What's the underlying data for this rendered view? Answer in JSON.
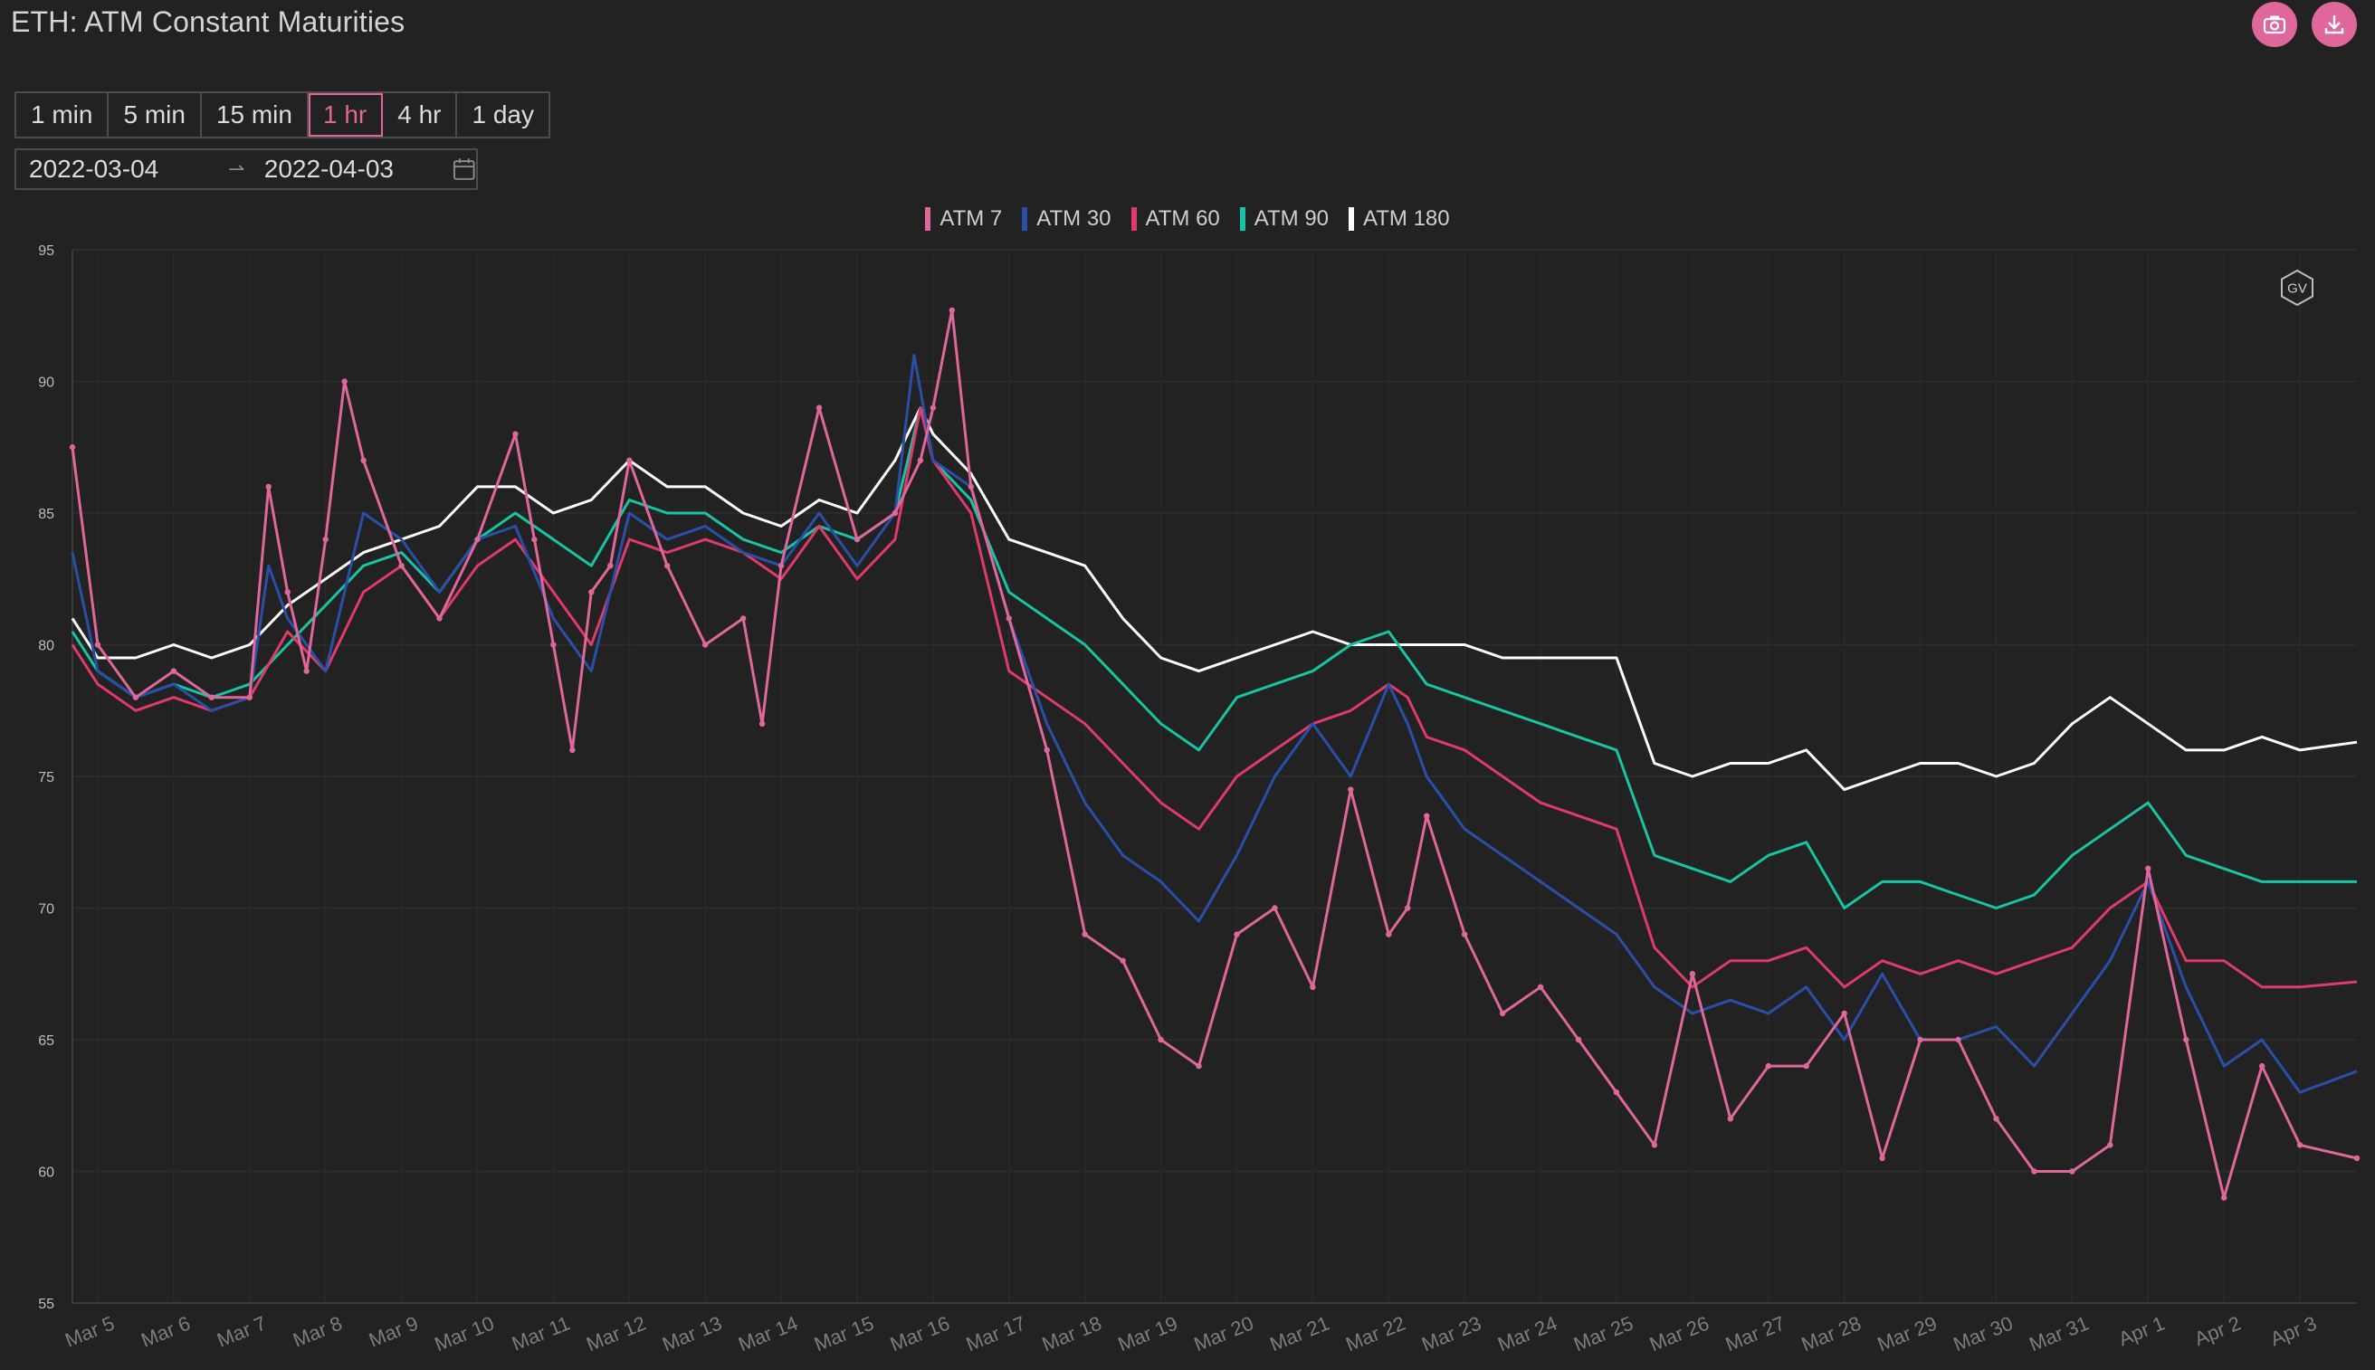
{
  "title": "ETH: ATM Constant Maturities",
  "actions": {
    "screenshot_icon": "camera-icon",
    "download_icon": "download-icon"
  },
  "intervals": [
    {
      "label": "1 min"
    },
    {
      "label": "5 min"
    },
    {
      "label": "15 min"
    },
    {
      "label": "1 hr",
      "active": true
    },
    {
      "label": "4 hr"
    },
    {
      "label": "1 day"
    }
  ],
  "date_range": {
    "start": "2022-03-04",
    "end": "2022-04-03",
    "icon": "calendar-icon"
  },
  "watermark": "GV",
  "chart_data": {
    "type": "line",
    "title": "",
    "xlabel": "",
    "ylabel": "",
    "ylim": [
      55,
      95
    ],
    "yticks": [
      55,
      60,
      65,
      70,
      75,
      80,
      85,
      90,
      95
    ],
    "xlim": [
      "2022-03-04T16:00",
      "2022-04-03T18:00"
    ],
    "xticks": [
      "Mar 5",
      "Mar 6",
      "Mar 7",
      "Mar 8",
      "Mar 9",
      "Mar 10",
      "Mar 11",
      "Mar 12",
      "Mar 13",
      "Mar 14",
      "Mar 15",
      "Mar 16",
      "Mar 17",
      "Mar 18",
      "Mar 19",
      "Mar 20",
      "Mar 21",
      "Mar 22",
      "Mar 23",
      "Mar 24",
      "Mar 25",
      "Mar 26",
      "Mar 27",
      "Mar 28",
      "Mar 29",
      "Mar 30",
      "Mar 31",
      "Apr 1",
      "Apr 2",
      "Apr 3"
    ],
    "legend_position": "top-center",
    "grid": true,
    "series": [
      {
        "name": "ATM 7",
        "color": "#e0679b",
        "marker": true,
        "x": [
          "2022-03-04T16:00",
          "2022-03-05T00:00",
          "2022-03-05T12:00",
          "2022-03-06T00:00",
          "2022-03-06T12:00",
          "2022-03-07T00:00",
          "2022-03-07T06:00",
          "2022-03-07T12:00",
          "2022-03-07T18:00",
          "2022-03-08T00:00",
          "2022-03-08T06:00",
          "2022-03-08T12:00",
          "2022-03-09T00:00",
          "2022-03-09T12:00",
          "2022-03-10T00:00",
          "2022-03-10T12:00",
          "2022-03-10T18:00",
          "2022-03-11T00:00",
          "2022-03-11T06:00",
          "2022-03-11T12:00",
          "2022-03-11T18:00",
          "2022-03-12T00:00",
          "2022-03-12T12:00",
          "2022-03-13T00:00",
          "2022-03-13T12:00",
          "2022-03-13T18:00",
          "2022-03-14T00:00",
          "2022-03-14T12:00",
          "2022-03-15T00:00",
          "2022-03-15T12:00",
          "2022-03-15T20:00",
          "2022-03-16T00:00",
          "2022-03-16T06:00",
          "2022-03-16T12:00",
          "2022-03-17T00:00",
          "2022-03-17T12:00",
          "2022-03-18T00:00",
          "2022-03-18T12:00",
          "2022-03-19T00:00",
          "2022-03-19T12:00",
          "2022-03-20T00:00",
          "2022-03-20T12:00",
          "2022-03-21T00:00",
          "2022-03-21T12:00",
          "2022-03-22T00:00",
          "2022-03-22T06:00",
          "2022-03-22T12:00",
          "2022-03-23T00:00",
          "2022-03-23T12:00",
          "2022-03-24T00:00",
          "2022-03-24T12:00",
          "2022-03-25T00:00",
          "2022-03-25T12:00",
          "2022-03-26T00:00",
          "2022-03-26T12:00",
          "2022-03-27T00:00",
          "2022-03-27T12:00",
          "2022-03-28T00:00",
          "2022-03-28T12:00",
          "2022-03-29T00:00",
          "2022-03-29T12:00",
          "2022-03-30T00:00",
          "2022-03-30T12:00",
          "2022-03-31T00:00",
          "2022-03-31T12:00",
          "2022-04-01T00:00",
          "2022-04-01T12:00",
          "2022-04-02T00:00",
          "2022-04-02T12:00",
          "2022-04-03T00:00",
          "2022-04-03T18:00"
        ],
        "values": [
          87.5,
          80.0,
          78.0,
          79.0,
          78.0,
          78.0,
          86.0,
          82.0,
          79.0,
          84.0,
          90.0,
          87.0,
          83.0,
          81.0,
          84.0,
          88.0,
          84.0,
          80.0,
          76.0,
          82.0,
          83.0,
          87.0,
          83.0,
          80.0,
          81.0,
          77.0,
          83.0,
          89.0,
          84.0,
          85.0,
          87.0,
          89.0,
          92.7,
          86.0,
          81.0,
          76.0,
          69.0,
          68.0,
          65.0,
          64.0,
          69.0,
          70.0,
          67.0,
          74.5,
          69.0,
          70.0,
          73.5,
          69.0,
          66.0,
          67.0,
          65.0,
          63.0,
          61.0,
          67.5,
          62.0,
          64.0,
          64.0,
          66.0,
          60.5,
          65.0,
          65.0,
          62.0,
          60.0,
          60.0,
          61.0,
          71.5,
          65.0,
          59.0,
          64.0,
          61.0,
          60.5
        ]
      },
      {
        "name": "ATM 30",
        "color": "#2a4fa8",
        "marker": false,
        "x": [
          "2022-03-04T16:00",
          "2022-03-05T00:00",
          "2022-03-05T12:00",
          "2022-03-06T00:00",
          "2022-03-06T12:00",
          "2022-03-07T00:00",
          "2022-03-07T06:00",
          "2022-03-07T12:00",
          "2022-03-08T00:00",
          "2022-03-08T12:00",
          "2022-03-09T00:00",
          "2022-03-09T12:00",
          "2022-03-10T00:00",
          "2022-03-10T12:00",
          "2022-03-11T00:00",
          "2022-03-11T12:00",
          "2022-03-12T00:00",
          "2022-03-12T12:00",
          "2022-03-13T00:00",
          "2022-03-13T12:00",
          "2022-03-14T00:00",
          "2022-03-14T12:00",
          "2022-03-15T00:00",
          "2022-03-15T12:00",
          "2022-03-15T18:00",
          "2022-03-16T00:00",
          "2022-03-16T12:00",
          "2022-03-17T00:00",
          "2022-03-17T12:00",
          "2022-03-18T00:00",
          "2022-03-18T12:00",
          "2022-03-19T00:00",
          "2022-03-19T12:00",
          "2022-03-20T00:00",
          "2022-03-20T12:00",
          "2022-03-21T00:00",
          "2022-03-21T12:00",
          "2022-03-22T00:00",
          "2022-03-22T06:00",
          "2022-03-22T12:00",
          "2022-03-23T00:00",
          "2022-03-23T12:00",
          "2022-03-24T00:00",
          "2022-03-24T12:00",
          "2022-03-25T00:00",
          "2022-03-25T12:00",
          "2022-03-26T00:00",
          "2022-03-26T12:00",
          "2022-03-27T00:00",
          "2022-03-27T12:00",
          "2022-03-28T00:00",
          "2022-03-28T12:00",
          "2022-03-29T00:00",
          "2022-03-29T12:00",
          "2022-03-30T00:00",
          "2022-03-30T12:00",
          "2022-03-31T00:00",
          "2022-03-31T12:00",
          "2022-04-01T00:00",
          "2022-04-01T12:00",
          "2022-04-02T00:00",
          "2022-04-02T12:00",
          "2022-04-03T00:00",
          "2022-04-03T18:00"
        ],
        "values": [
          83.5,
          79.0,
          78.0,
          78.5,
          77.5,
          78.0,
          83.0,
          81.0,
          79.0,
          85.0,
          84.0,
          82.0,
          84.0,
          84.5,
          81.0,
          79.0,
          85.0,
          84.0,
          84.5,
          83.5,
          83.0,
          85.0,
          83.0,
          85.0,
          91.0,
          87.0,
          86.0,
          81.0,
          77.0,
          74.0,
          72.0,
          71.0,
          69.5,
          72.0,
          75.0,
          77.0,
          75.0,
          78.5,
          77.0,
          75.0,
          73.0,
          72.0,
          71.0,
          70.0,
          69.0,
          67.0,
          66.0,
          66.5,
          66.0,
          67.0,
          65.0,
          67.5,
          65.0,
          65.0,
          65.5,
          64.0,
          66.0,
          68.0,
          71.0,
          67.0,
          64.0,
          65.0,
          63.0,
          63.8
        ]
      },
      {
        "name": "ATM 60",
        "color": "#e03a6b",
        "marker": false,
        "x": [
          "2022-03-04T16:00",
          "2022-03-05T00:00",
          "2022-03-05T12:00",
          "2022-03-06T00:00",
          "2022-03-06T12:00",
          "2022-03-07T00:00",
          "2022-03-07T12:00",
          "2022-03-08T00:00",
          "2022-03-08T12:00",
          "2022-03-09T00:00",
          "2022-03-09T12:00",
          "2022-03-10T00:00",
          "2022-03-10T12:00",
          "2022-03-11T00:00",
          "2022-03-11T12:00",
          "2022-03-12T00:00",
          "2022-03-12T12:00",
          "2022-03-13T00:00",
          "2022-03-13T12:00",
          "2022-03-14T00:00",
          "2022-03-14T12:00",
          "2022-03-15T00:00",
          "2022-03-15T12:00",
          "2022-03-15T20:00",
          "2022-03-16T00:00",
          "2022-03-16T12:00",
          "2022-03-17T00:00",
          "2022-03-17T12:00",
          "2022-03-18T00:00",
          "2022-03-18T12:00",
          "2022-03-19T00:00",
          "2022-03-19T12:00",
          "2022-03-20T00:00",
          "2022-03-20T12:00",
          "2022-03-21T00:00",
          "2022-03-21T12:00",
          "2022-03-22T00:00",
          "2022-03-22T06:00",
          "2022-03-22T12:00",
          "2022-03-23T00:00",
          "2022-03-23T12:00",
          "2022-03-24T00:00",
          "2022-03-24T12:00",
          "2022-03-25T00:00",
          "2022-03-25T12:00",
          "2022-03-26T00:00",
          "2022-03-26T12:00",
          "2022-03-27T00:00",
          "2022-03-27T12:00",
          "2022-03-28T00:00",
          "2022-03-28T12:00",
          "2022-03-29T00:00",
          "2022-03-29T12:00",
          "2022-03-30T00:00",
          "2022-03-30T12:00",
          "2022-03-31T00:00",
          "2022-03-31T12:00",
          "2022-04-01T00:00",
          "2022-04-01T12:00",
          "2022-04-02T00:00",
          "2022-04-02T12:00",
          "2022-04-03T00:00",
          "2022-04-03T18:00"
        ],
        "values": [
          80.0,
          78.5,
          77.5,
          78.0,
          77.5,
          78.0,
          80.5,
          79.0,
          82.0,
          83.0,
          81.0,
          83.0,
          84.0,
          82.0,
          80.0,
          84.0,
          83.5,
          84.0,
          83.5,
          82.5,
          84.5,
          82.5,
          84.0,
          89.0,
          87.0,
          85.0,
          79.0,
          78.0,
          77.0,
          75.5,
          74.0,
          73.0,
          75.0,
          76.0,
          77.0,
          77.5,
          78.5,
          78.0,
          76.5,
          76.0,
          75.0,
          74.0,
          73.5,
          73.0,
          68.5,
          67.0,
          68.0,
          68.0,
          68.5,
          67.0,
          68.0,
          67.5,
          68.0,
          67.5,
          68.0,
          68.5,
          70.0,
          71.0,
          68.0,
          68.0,
          67.0,
          67.0,
          67.2
        ]
      },
      {
        "name": "ATM 90",
        "color": "#17c4a3",
        "marker": false,
        "x": [
          "2022-03-04T16:00",
          "2022-03-05T00:00",
          "2022-03-05T12:00",
          "2022-03-06T00:00",
          "2022-03-06T12:00",
          "2022-03-07T00:00",
          "2022-03-07T12:00",
          "2022-03-08T00:00",
          "2022-03-08T12:00",
          "2022-03-09T00:00",
          "2022-03-09T12:00",
          "2022-03-10T00:00",
          "2022-03-10T12:00",
          "2022-03-11T00:00",
          "2022-03-11T12:00",
          "2022-03-12T00:00",
          "2022-03-12T12:00",
          "2022-03-13T00:00",
          "2022-03-13T12:00",
          "2022-03-14T00:00",
          "2022-03-14T12:00",
          "2022-03-15T00:00",
          "2022-03-15T12:00",
          "2022-03-15T20:00",
          "2022-03-16T00:00",
          "2022-03-16T12:00",
          "2022-03-17T00:00",
          "2022-03-17T12:00",
          "2022-03-18T00:00",
          "2022-03-18T12:00",
          "2022-03-19T00:00",
          "2022-03-19T12:00",
          "2022-03-20T00:00",
          "2022-03-20T12:00",
          "2022-03-21T00:00",
          "2022-03-21T12:00",
          "2022-03-22T00:00",
          "2022-03-22T12:00",
          "2022-03-23T00:00",
          "2022-03-23T12:00",
          "2022-03-24T00:00",
          "2022-03-24T12:00",
          "2022-03-25T00:00",
          "2022-03-25T12:00",
          "2022-03-26T00:00",
          "2022-03-26T12:00",
          "2022-03-27T00:00",
          "2022-03-27T12:00",
          "2022-03-28T00:00",
          "2022-03-28T12:00",
          "2022-03-29T00:00",
          "2022-03-29T12:00",
          "2022-03-30T00:00",
          "2022-03-30T12:00",
          "2022-03-31T00:00",
          "2022-03-31T12:00",
          "2022-04-01T00:00",
          "2022-04-01T12:00",
          "2022-04-02T00:00",
          "2022-04-02T12:00",
          "2022-04-03T00:00",
          "2022-04-03T18:00"
        ],
        "values": [
          80.5,
          79.0,
          78.0,
          78.5,
          78.0,
          78.5,
          80.0,
          81.5,
          83.0,
          83.5,
          82.0,
          84.0,
          85.0,
          84.0,
          83.0,
          85.5,
          85.0,
          85.0,
          84.0,
          83.5,
          84.5,
          84.0,
          85.0,
          89.0,
          87.0,
          85.5,
          82.0,
          81.0,
          80.0,
          78.5,
          77.0,
          76.0,
          78.0,
          78.5,
          79.0,
          80.0,
          80.5,
          78.5,
          78.0,
          77.5,
          77.0,
          76.5,
          76.0,
          72.0,
          71.5,
          71.0,
          72.0,
          72.5,
          70.0,
          71.0,
          71.0,
          70.5,
          70.0,
          70.5,
          72.0,
          73.0,
          74.0,
          72.0,
          71.5,
          71.0,
          71.0,
          71.0
        ]
      },
      {
        "name": "ATM 180",
        "color": "#ffffff",
        "marker": false,
        "x": [
          "2022-03-04T16:00",
          "2022-03-05T00:00",
          "2022-03-05T12:00",
          "2022-03-06T00:00",
          "2022-03-06T12:00",
          "2022-03-07T00:00",
          "2022-03-07T12:00",
          "2022-03-08T00:00",
          "2022-03-08T12:00",
          "2022-03-09T00:00",
          "2022-03-09T12:00",
          "2022-03-10T00:00",
          "2022-03-10T12:00",
          "2022-03-11T00:00",
          "2022-03-11T12:00",
          "2022-03-12T00:00",
          "2022-03-12T12:00",
          "2022-03-13T00:00",
          "2022-03-13T12:00",
          "2022-03-14T00:00",
          "2022-03-14T12:00",
          "2022-03-15T00:00",
          "2022-03-15T12:00",
          "2022-03-15T20:00",
          "2022-03-16T00:00",
          "2022-03-16T12:00",
          "2022-03-17T00:00",
          "2022-03-17T12:00",
          "2022-03-18T00:00",
          "2022-03-18T12:00",
          "2022-03-19T00:00",
          "2022-03-19T12:00",
          "2022-03-20T00:00",
          "2022-03-20T12:00",
          "2022-03-21T00:00",
          "2022-03-21T12:00",
          "2022-03-22T00:00",
          "2022-03-22T12:00",
          "2022-03-23T00:00",
          "2022-03-23T12:00",
          "2022-03-24T00:00",
          "2022-03-24T12:00",
          "2022-03-25T00:00",
          "2022-03-25T12:00",
          "2022-03-26T00:00",
          "2022-03-26T12:00",
          "2022-03-27T00:00",
          "2022-03-27T12:00",
          "2022-03-28T00:00",
          "2022-03-28T12:00",
          "2022-03-29T00:00",
          "2022-03-29T12:00",
          "2022-03-30T00:00",
          "2022-03-30T12:00",
          "2022-03-31T00:00",
          "2022-03-31T12:00",
          "2022-04-01T00:00",
          "2022-04-01T12:00",
          "2022-04-02T00:00",
          "2022-04-02T12:00",
          "2022-04-03T00:00",
          "2022-04-03T18:00"
        ],
        "values": [
          81.0,
          79.5,
          79.5,
          80.0,
          79.5,
          80.0,
          81.5,
          82.5,
          83.5,
          84.0,
          84.5,
          86.0,
          86.0,
          85.0,
          85.5,
          87.0,
          86.0,
          86.0,
          85.0,
          84.5,
          85.5,
          85.0,
          87.0,
          89.0,
          88.0,
          86.5,
          84.0,
          83.5,
          83.0,
          81.0,
          79.5,
          79.0,
          79.5,
          80.0,
          80.5,
          80.0,
          80.0,
          80.0,
          80.0,
          79.5,
          79.5,
          79.5,
          79.5,
          75.5,
          75.0,
          75.5,
          75.5,
          76.0,
          74.5,
          75.0,
          75.5,
          75.5,
          75.0,
          75.5,
          77.0,
          78.0,
          77.0,
          76.0,
          76.0,
          76.5,
          76.0,
          76.3
        ]
      }
    ]
  }
}
